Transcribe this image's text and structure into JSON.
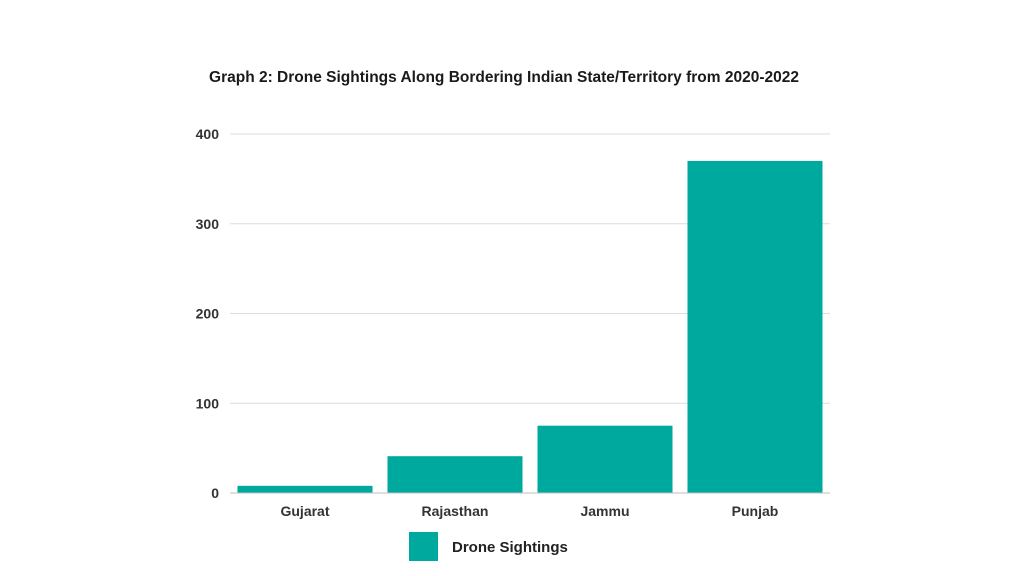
{
  "chart_data": {
    "type": "bar",
    "title": "Graph 2: Drone Sightings Along Bordering Indian State/Territory from 2020-2022",
    "categories": [
      "Gujarat",
      "Rajasthan",
      "Jammu",
      "Punjab"
    ],
    "series": [
      {
        "name": "Drone Sightings",
        "color": "#00A99D",
        "values": [
          8,
          41,
          75,
          370
        ]
      }
    ],
    "xlabel": "",
    "ylabel": "",
    "ylim": [
      0,
      400
    ],
    "yticks": [
      "0",
      "100",
      "200",
      "300",
      "400"
    ],
    "grid": true,
    "legend_position": "bottom-center"
  }
}
